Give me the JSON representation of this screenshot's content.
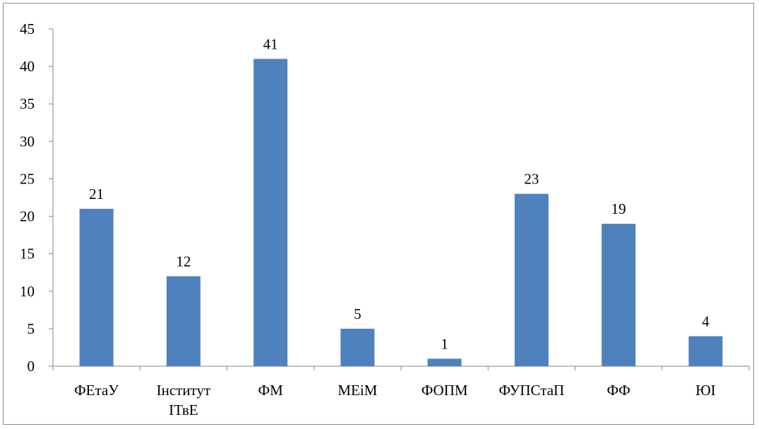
{
  "chart_data": {
    "type": "bar",
    "categories": [
      [
        "ФЕтаУ"
      ],
      [
        "Інститут",
        "ІТвЕ"
      ],
      [
        "ФМ"
      ],
      [
        "МЕіМ"
      ],
      [
        "ФОПМ"
      ],
      [
        "ФУПСтаП"
      ],
      [
        "ФФ"
      ],
      [
        "ЮІ"
      ]
    ],
    "values": [
      21,
      12,
      41,
      5,
      1,
      23,
      19,
      4
    ],
    "data_labels": [
      "21",
      "12",
      "41",
      "5",
      "1",
      "23",
      "19",
      "4"
    ],
    "ylim": [
      0,
      45
    ],
    "yticks": [
      0,
      5,
      10,
      15,
      20,
      25,
      30,
      35,
      40,
      45
    ],
    "ytick_labels": [
      "0",
      "5",
      "10",
      "15",
      "20",
      "25",
      "30",
      "35",
      "40",
      "45"
    ],
    "title": "",
    "xlabel": "",
    "ylabel": "",
    "grid": false,
    "legend": "none",
    "bar_color": "#4f81bd",
    "axis_color": "#868686"
  }
}
